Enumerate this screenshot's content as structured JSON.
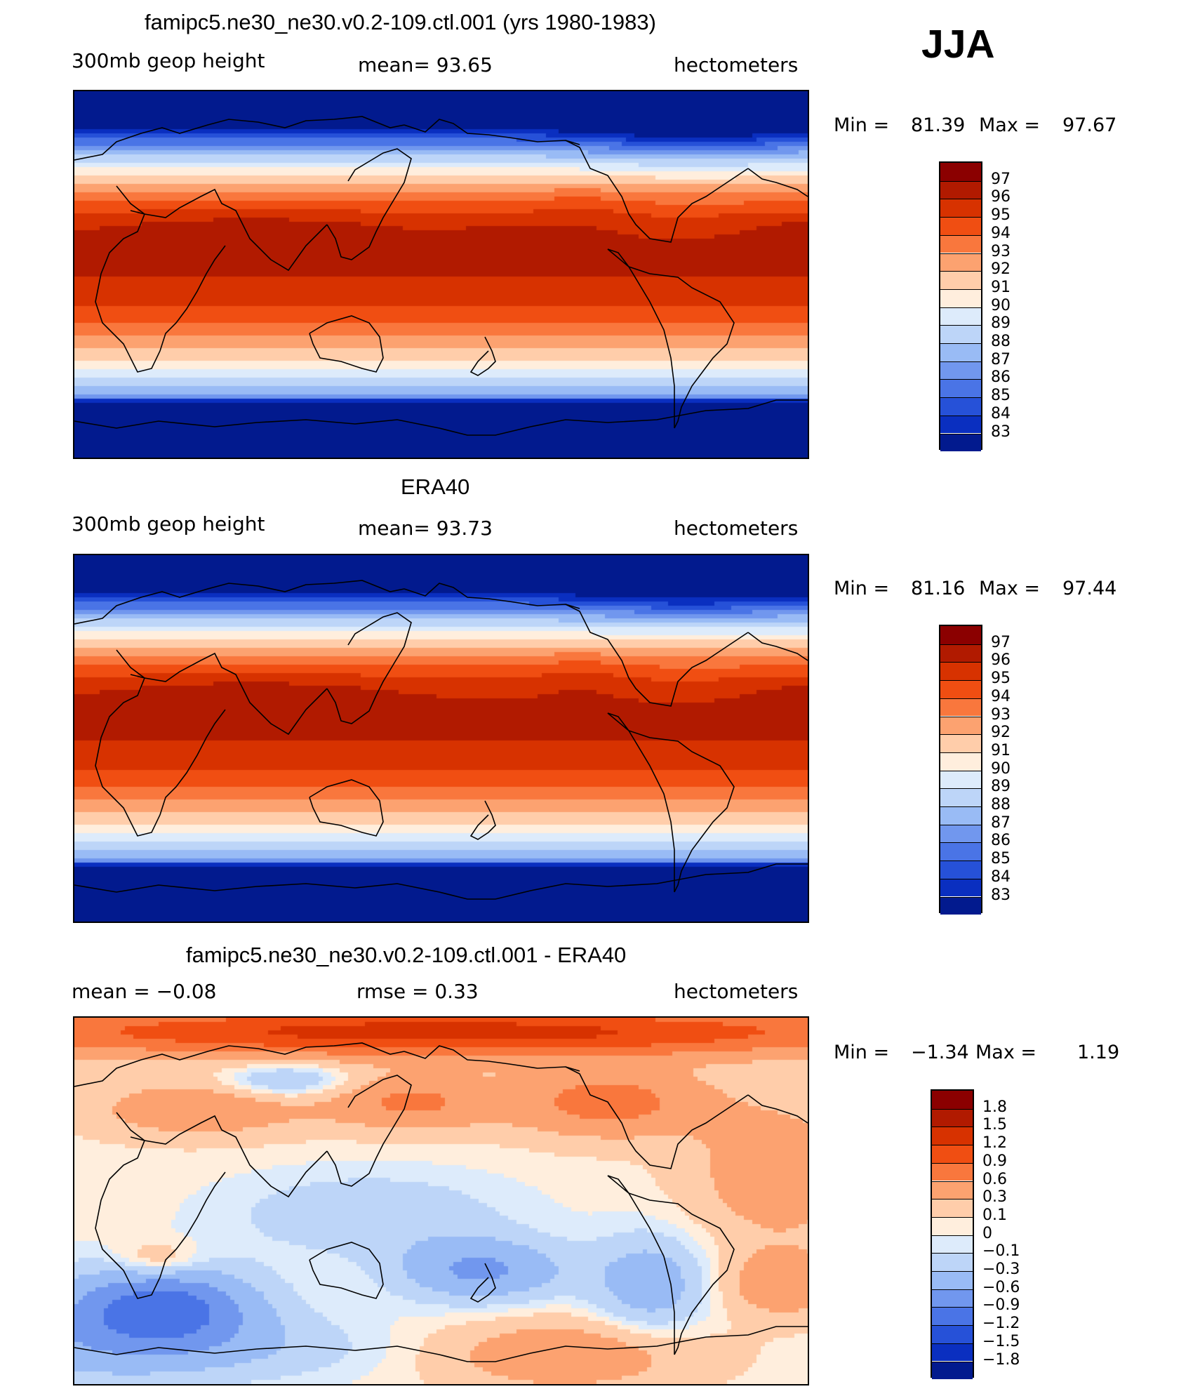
{
  "season": "JJA",
  "panels": [
    {
      "title": "famipc5.ne30_ne30.v0.2-109.ctl.001 (yrs 1980-1983)",
      "left_label": "300mb  geop  height",
      "mid_label": "mean=   93.65",
      "right_label": "hectometers",
      "min_label": "Min  =",
      "min_value": "81.39",
      "max_label": "Max  =",
      "max_value": "97.67",
      "field": "model",
      "colorbar": {
        "levels": [
          "97",
          "96",
          "95",
          "94",
          "93",
          "92",
          "91",
          "90",
          "89",
          "88",
          "87",
          "86",
          "85",
          "84",
          "83"
        ],
        "colors": [
          "#8B0000",
          "#B11A00",
          "#D73200",
          "#F04E12",
          "#F9773D",
          "#FCA270",
          "#FFCDAA",
          "#FFEEDD",
          "#DDEBFB",
          "#BDD5F8",
          "#99BBF5",
          "#7197EE",
          "#4A74E6",
          "#2651D8",
          "#0A2FC0",
          "#021A8E"
        ]
      }
    },
    {
      "title": "ERA40",
      "left_label": "300mb  geop  height",
      "mid_label": "mean=   93.73",
      "right_label": "hectometers",
      "min_label": "Min  =",
      "min_value": "81.16",
      "max_label": "Max  =",
      "max_value": "97.44",
      "field": "obs",
      "colorbar": {
        "levels": [
          "97",
          "96",
          "95",
          "94",
          "93",
          "92",
          "91",
          "90",
          "89",
          "88",
          "87",
          "86",
          "85",
          "84",
          "83"
        ],
        "colors": [
          "#8B0000",
          "#B11A00",
          "#D73200",
          "#F04E12",
          "#F9773D",
          "#FCA270",
          "#FFCDAA",
          "#FFEEDD",
          "#DDEBFB",
          "#BDD5F8",
          "#99BBF5",
          "#7197EE",
          "#4A74E6",
          "#2651D8",
          "#0A2FC0",
          "#021A8E"
        ]
      }
    },
    {
      "title": "famipc5.ne30_ne30.v0.2-109.ctl.001 - ERA40",
      "left_label": "mean  =    −0.08",
      "mid_label": "rmse  =     0.33",
      "right_label": "hectometers",
      "min_label": "Min  =",
      "min_value": "−1.34",
      "max_label": "Max  =",
      "max_value": "1.19",
      "field": "diff",
      "colorbar": {
        "levels": [
          "1.8",
          "1.5",
          "1.2",
          "0.9",
          "0.6",
          "0.3",
          "0.1",
          "0",
          "−0.1",
          "−0.3",
          "−0.6",
          "−0.9",
          "−1.2",
          "−1.5",
          "−1.8"
        ],
        "colors": [
          "#8B0000",
          "#B11A00",
          "#D73200",
          "#F04E12",
          "#F9773D",
          "#FCA270",
          "#FFCDAA",
          "#FFEEDD",
          "#DDEBFB",
          "#BDD5F8",
          "#99BBF5",
          "#7197EE",
          "#4A74E6",
          "#2651D8",
          "#0A2FC0",
          "#021A8E"
        ]
      }
    }
  ]
}
